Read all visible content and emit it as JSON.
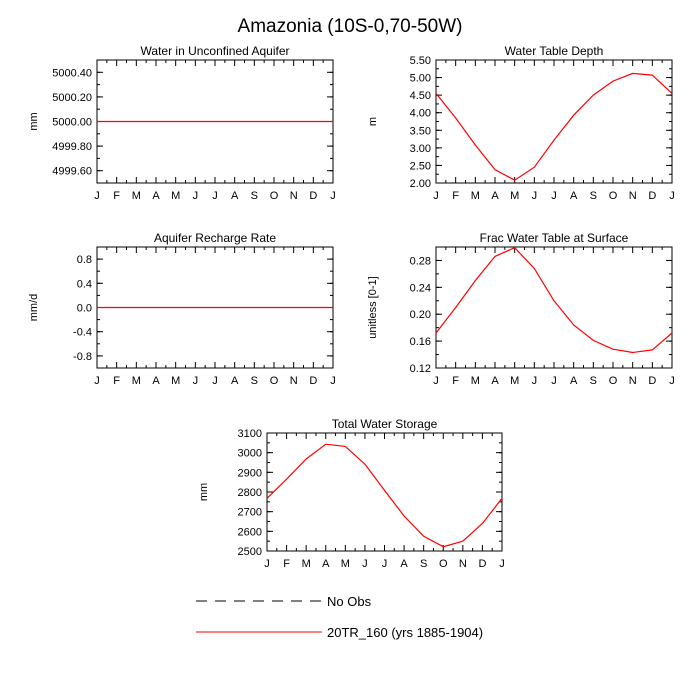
{
  "figure": {
    "title": "Amazonia (10S-0,70-50W)"
  },
  "months": [
    "J",
    "F",
    "M",
    "A",
    "M",
    "J",
    "J",
    "A",
    "S",
    "O",
    "N",
    "D",
    "J"
  ],
  "colors": {
    "model": "#ff0000",
    "obs": "#000000"
  },
  "legend": {
    "entries": [
      {
        "label": "No Obs",
        "style": "dashed",
        "color": "#000000"
      },
      {
        "label": "20TR_160 (yrs 1885-1904)",
        "style": "solid",
        "color": "#ff0000"
      }
    ]
  },
  "chart_data": [
    {
      "id": "water-unconfined-aquifer",
      "type": "line",
      "title": "Water in Unconfined Aquifer",
      "ylabel": "mm",
      "ylim": [
        4999.5,
        5000.5
      ],
      "yticks": [
        4999.6,
        4999.8,
        5000.0,
        5000.2,
        5000.4
      ],
      "ytick_labels": [
        "4999.60",
        "4999.80",
        "5000.00",
        "5000.20",
        "5000.40"
      ],
      "series": [
        {
          "values": [
            5000,
            5000,
            5000,
            5000,
            5000,
            5000,
            5000,
            5000,
            5000,
            5000,
            5000,
            5000,
            5000
          ]
        }
      ]
    },
    {
      "id": "water-table-depth",
      "type": "line",
      "title": "Water Table Depth",
      "ylabel": "m",
      "ylim": [
        2.0,
        5.5
      ],
      "yticks": [
        2.0,
        2.5,
        3.0,
        3.5,
        4.0,
        4.5,
        5.0,
        5.5
      ],
      "ytick_labels": [
        "2.00",
        "2.50",
        "3.00",
        "3.50",
        "4.00",
        "4.50",
        "5.00",
        "5.50"
      ],
      "series": [
        {
          "values": [
            4.55,
            3.85,
            3.08,
            2.38,
            2.08,
            2.45,
            3.22,
            3.93,
            4.5,
            4.9,
            5.12,
            5.07,
            4.55
          ]
        }
      ]
    },
    {
      "id": "aquifer-recharge-rate",
      "type": "line",
      "title": "Aquifer Recharge Rate",
      "ylabel": "mm/d",
      "ylim": [
        -1.0,
        1.0
      ],
      "yticks": [
        -0.8,
        -0.4,
        0.0,
        0.4,
        0.8
      ],
      "ytick_labels": [
        "-0.8",
        "-0.4",
        "0.0",
        "0.4",
        "0.8"
      ],
      "series": [
        {
          "values": [
            0,
            0,
            0,
            0,
            0,
            0,
            0,
            0,
            0,
            0,
            0,
            0,
            0
          ]
        }
      ]
    },
    {
      "id": "frac-water-table-surface",
      "type": "line",
      "title": "Frac Water Table at Surface",
      "ylabel": "unitless [0-1]",
      "ylim": [
        0.12,
        0.3
      ],
      "yticks": [
        0.12,
        0.16,
        0.2,
        0.24,
        0.28
      ],
      "ytick_labels": [
        "0.12",
        "0.16",
        "0.20",
        "0.24",
        "0.28"
      ],
      "series": [
        {
          "values": [
            0.172,
            0.21,
            0.25,
            0.286,
            0.299,
            0.268,
            0.22,
            0.184,
            0.161,
            0.148,
            0.143,
            0.147,
            0.172
          ]
        }
      ]
    },
    {
      "id": "total-water-storage",
      "type": "line",
      "title": "Total Water Storage",
      "ylabel": "mm",
      "ylim": [
        2500,
        3100
      ],
      "yticks": [
        2500,
        2600,
        2700,
        2800,
        2900,
        3000,
        3100
      ],
      "ytick_labels": [
        "2500",
        "2600",
        "2700",
        "2800",
        "2900",
        "3000",
        "3100"
      ],
      "series": [
        {
          "values": [
            2768,
            2865,
            2968,
            3043,
            3032,
            2942,
            2808,
            2678,
            2575,
            2522,
            2550,
            2640,
            2768
          ]
        }
      ]
    }
  ]
}
